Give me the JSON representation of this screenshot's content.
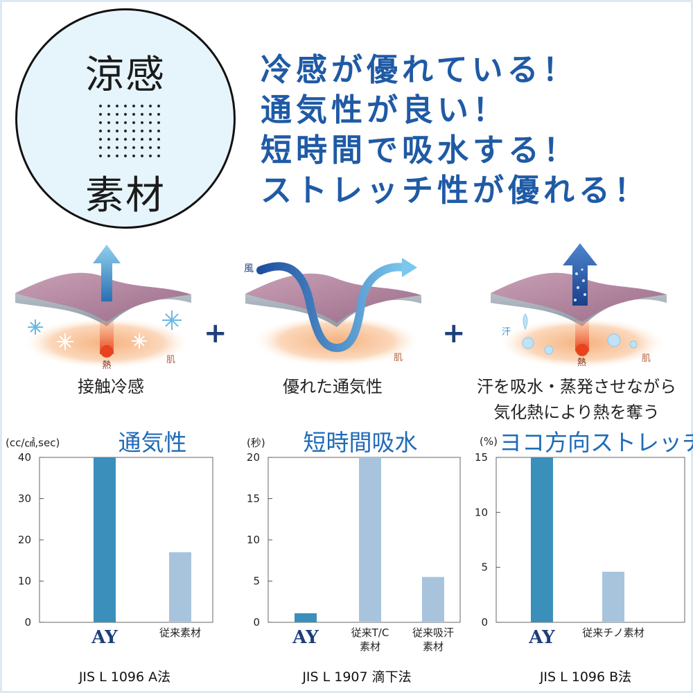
{
  "badge": {
    "top": "涼感",
    "bottom": "素材"
  },
  "headlines": [
    "冷感が優れている！",
    "通気性が良い！",
    "短時間で吸水する！",
    "ストレッチ性が優れる！"
  ],
  "features": [
    {
      "caption": "接触冷感",
      "labels": {
        "heat": "熱",
        "skin": "肌"
      }
    },
    {
      "caption": "優れた通気性",
      "labels": {
        "wind": "風",
        "skin": "肌"
      }
    },
    {
      "caption_line1": "汗を吸水・蒸発させながら",
      "caption_line2": "気化熱により熱を奪う",
      "labels": {
        "sweat": "汗",
        "heat": "熱",
        "skin": "肌"
      }
    }
  ],
  "plus_sign": "+",
  "colors": {
    "headline": "#1f5aa5",
    "ay_bar": "#3b8fbb",
    "other_bar": "#a7c4dc",
    "chart_title": "#1f6bb8"
  },
  "chart_data": [
    {
      "type": "bar",
      "title": "通気性",
      "ylabel": "(cc/㎠,sec)",
      "categories": [
        "AY",
        "従来素材"
      ],
      "values": [
        40,
        17
      ],
      "ylim": [
        0,
        40
      ],
      "yticks": [
        0,
        10,
        20,
        30,
        40
      ],
      "method": "JIS L 1096 A法"
    },
    {
      "type": "bar",
      "title": "短時間吸水",
      "ylabel": "(秒)",
      "categories": [
        "AY",
        "従来T/C\n素材",
        "従来吸汗\n素材"
      ],
      "values": [
        1.1,
        20,
        5.5
      ],
      "ylim": [
        0,
        20
      ],
      "yticks": [
        0,
        5,
        10,
        15,
        20
      ],
      "method": "JIS L 1907 滴下法"
    },
    {
      "type": "bar",
      "title": "ヨコ方向ストレッチ",
      "ylabel": "(%)",
      "categories": [
        "AY",
        "従来チノ素材"
      ],
      "values": [
        15,
        4.6
      ],
      "ylim": [
        0,
        15
      ],
      "yticks": [
        0,
        5,
        10,
        15
      ],
      "method": "JIS L 1096 B法"
    }
  ]
}
